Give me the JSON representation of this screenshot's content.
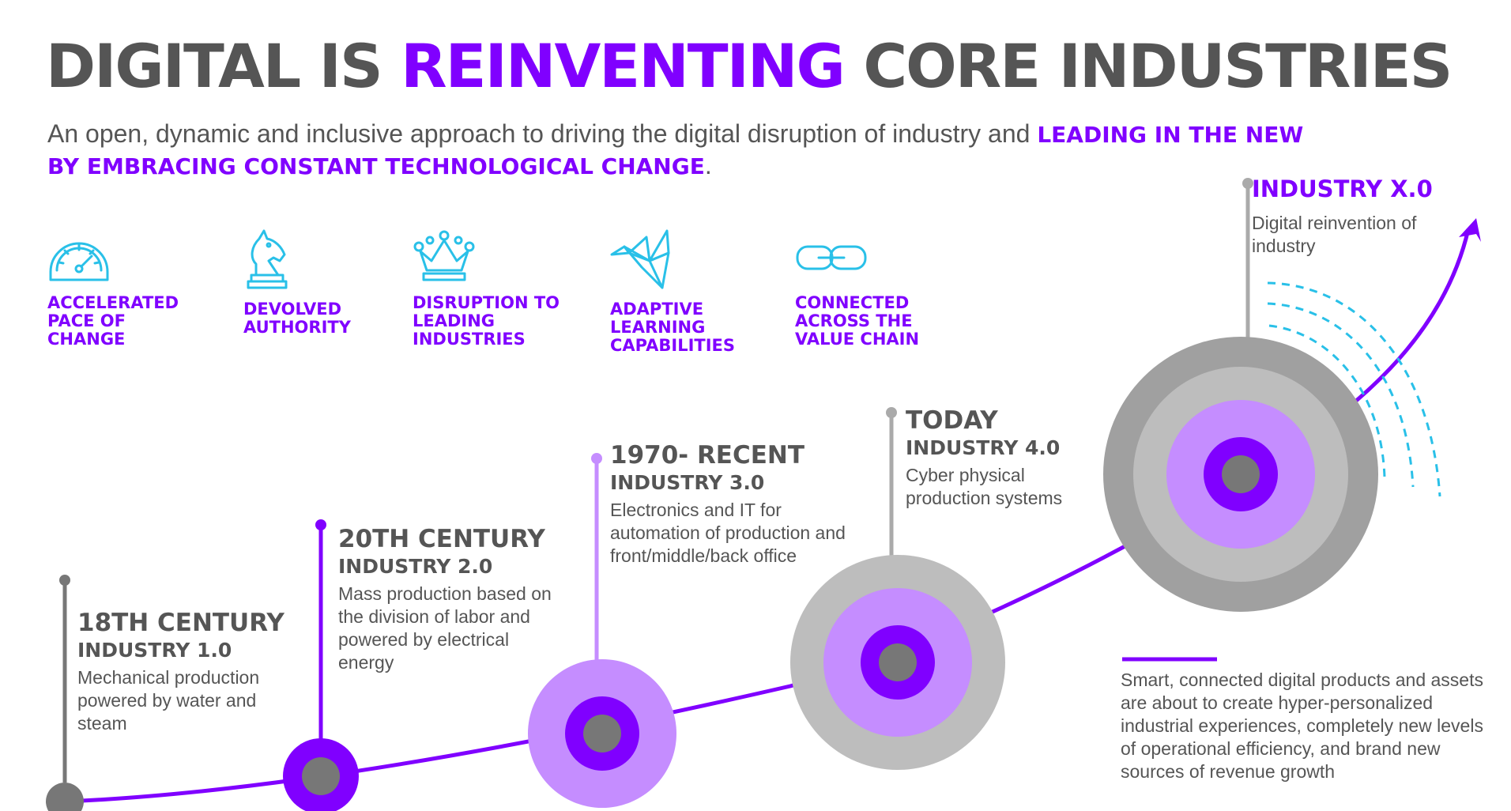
{
  "title": {
    "part1": "DIGITAL IS ",
    "part2": "REINVENTING",
    "part3": " CORE INDUSTRIES"
  },
  "subtitle": {
    "lead": "An open, dynamic and inclusive approach to driving the digital disruption of industry and ",
    "highlight": "LEADING IN THE NEW BY EMBRACING CONSTANT TECHNOLOGICAL CHANGE",
    "tail": "."
  },
  "features": [
    {
      "icon": "speedometer-icon",
      "label": "ACCELERATED\nPACE OF\nCHANGE"
    },
    {
      "icon": "chess-knight-icon",
      "label": "DEVOLVED\nAUTHORITY"
    },
    {
      "icon": "crown-icon",
      "label": "DISRUPTION TO\nLEADING\nINDUSTRIES"
    },
    {
      "icon": "origami-bird-icon",
      "label": "ADAPTIVE\nLEARNING\nCAPABILITIES"
    },
    {
      "icon": "chain-link-icon",
      "label": "CONNECTED\nACROSS THE\nVALUE CHAIN"
    }
  ],
  "eras": [
    {
      "heading": "18TH CENTURY",
      "sub": "INDUSTRY 1.0",
      "desc": "Mechanical production powered by water and steam"
    },
    {
      "heading": "20TH CENTURY",
      "sub": "INDUSTRY 2.0",
      "desc": "Mass production based on the division of labor and powered by electrical energy"
    },
    {
      "heading": "1970- RECENT",
      "sub": "INDUSTRY 3.0",
      "desc": "Electronics and IT for automation of production and front/middle/back office"
    },
    {
      "heading": "TODAY",
      "sub": "INDUSTRY 4.0",
      "desc": "Cyber physical production systems"
    }
  ],
  "future": {
    "title": "INDUSTRY X.0",
    "desc": "Digital reinvention of industry"
  },
  "note": "Smart, connected digital products and assets are about to create hyper-personalized industrial experiences, completely new levels of operational efficiency, and brand new sources of revenue growth",
  "colors": {
    "purple": "#8000ff",
    "lightPurple": "#c58dff",
    "gray": "#777777",
    "lightGray": "#bdbdbd",
    "midGray": "#a0a0a0",
    "cyan": "#29c0e8",
    "text": "#555555"
  }
}
